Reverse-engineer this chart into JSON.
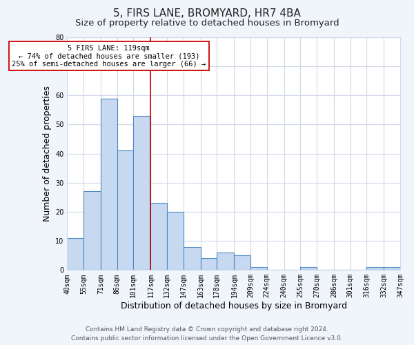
{
  "title": "5, FIRS LANE, BROMYARD, HR7 4BA",
  "subtitle": "Size of property relative to detached houses in Bromyard",
  "xlabel": "Distribution of detached houses by size in Bromyard",
  "ylabel": "Number of detached properties",
  "bar_color": "#c6d9f1",
  "bar_edge_color": "#4d88c4",
  "bins": [
    40,
    55,
    71,
    86,
    101,
    117,
    132,
    147,
    163,
    178,
    194,
    209,
    224,
    240,
    255,
    270,
    286,
    301,
    316,
    332,
    347
  ],
  "counts": [
    11,
    27,
    59,
    41,
    53,
    23,
    20,
    8,
    4,
    6,
    5,
    1,
    0,
    0,
    1,
    0,
    0,
    0,
    1,
    1
  ],
  "tick_labels": [
    "40sqm",
    "55sqm",
    "71sqm",
    "86sqm",
    "101sqm",
    "117sqm",
    "132sqm",
    "147sqm",
    "163sqm",
    "178sqm",
    "194sqm",
    "209sqm",
    "224sqm",
    "240sqm",
    "255sqm",
    "270sqm",
    "286sqm",
    "301sqm",
    "316sqm",
    "332sqm",
    "347sqm"
  ],
  "property_line_x": 117,
  "property_line_color": "#cc0000",
  "annotation_text_line1": "5 FIRS LANE: 119sqm",
  "annotation_text_line2": "← 74% of detached houses are smaller (193)",
  "annotation_text_line3": "25% of semi-detached houses are larger (66) →",
  "annotation_box_color": "#ffffff",
  "annotation_box_edge": "#cc0000",
  "ylim": [
    0,
    80
  ],
  "yticks": [
    0,
    10,
    20,
    30,
    40,
    50,
    60,
    70,
    80
  ],
  "footer_line1": "Contains HM Land Registry data © Crown copyright and database right 2024.",
  "footer_line2": "Contains public sector information licensed under the Open Government Licence v3.0.",
  "background_color": "#f0f4fb",
  "plot_background_color": "#ffffff",
  "grid_color": "#d0d8ea",
  "title_fontsize": 11,
  "subtitle_fontsize": 9.5,
  "axis_label_fontsize": 9,
  "tick_fontsize": 7,
  "footer_fontsize": 6.5,
  "annotation_fontsize": 7.5
}
